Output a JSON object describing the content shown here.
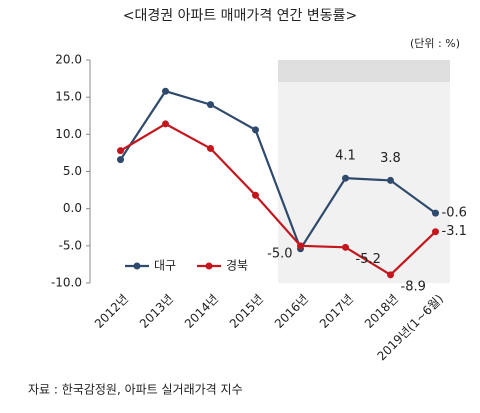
{
  "chart_data": {
    "type": "line",
    "title": "<대경권 아파트 매매가격 연간 변동률>",
    "unit": "(단위 : %)",
    "source": "자료 : 한국감정원, 아파트 실거래가격 지수",
    "categories": [
      "2012년",
      "2013년",
      "2014년",
      "2015년",
      "2016년",
      "2017년",
      "2018년",
      "2019년(1~6월)"
    ],
    "series": [
      {
        "name": "대구",
        "color": "#2f4a6d",
        "values": [
          6.6,
          15.8,
          14.0,
          10.6,
          -5.4,
          4.1,
          3.8,
          -0.6
        ],
        "value_labels": [
          null,
          null,
          null,
          null,
          null,
          "4.1",
          "3.8",
          "-0.6"
        ]
      },
      {
        "name": "경북",
        "color": "#c4161c",
        "values": [
          7.8,
          11.4,
          8.1,
          1.8,
          -5.0,
          -5.2,
          -8.9,
          -3.1
        ],
        "value_labels": [
          null,
          null,
          null,
          null,
          "-5.0",
          "-5.2",
          "-8.9",
          "-3.1"
        ]
      }
    ],
    "ylim": [
      -10,
      20
    ],
    "yticks": [
      {
        "value": 20,
        "label": "20.0"
      },
      {
        "value": 15,
        "label": "15.0"
      },
      {
        "value": 10,
        "label": "10.0"
      },
      {
        "value": 5,
        "label": "5.0"
      },
      {
        "value": 0,
        "label": "0.0"
      },
      {
        "value": -5,
        "label": "-5.0"
      },
      {
        "value": -10,
        "label": "-10.0"
      }
    ],
    "legend": "lower left"
  }
}
